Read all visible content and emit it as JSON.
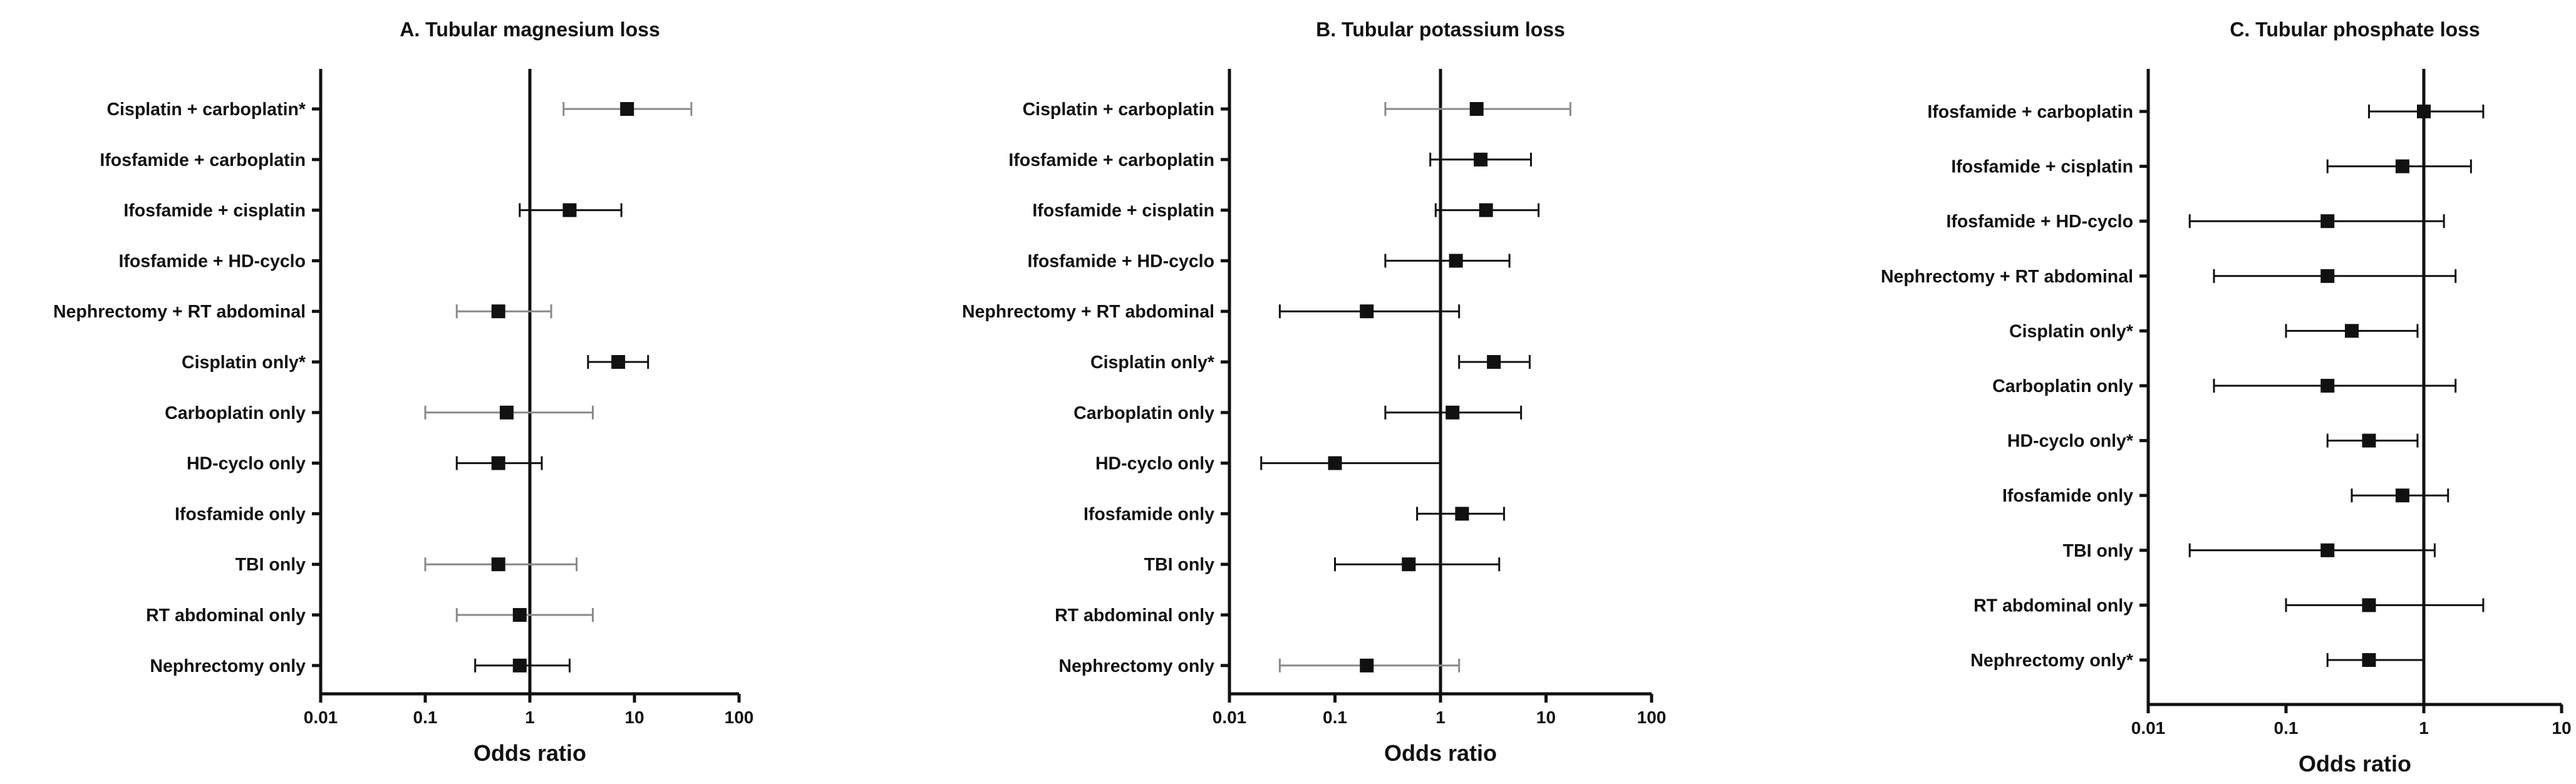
{
  "chart_data": [
    {
      "type": "forest",
      "title": "A. Tubular magnesium loss",
      "xlabel": "Odds ratio",
      "xscale": "log",
      "xlim": [
        0.01,
        100
      ],
      "xticks": [
        "0.01",
        "0.1",
        "1",
        "10",
        "100"
      ],
      "reference_line": 1,
      "rows": [
        {
          "label": "Cisplatin + carboplatin*",
          "or": 8.5,
          "lo": 2.1,
          "hi": 35,
          "gray": true
        },
        {
          "label": "Ifosfamide + carboplatin",
          "or": null,
          "lo": null,
          "hi": null,
          "gray": false
        },
        {
          "label": "Ifosfamide + cisplatin",
          "or": 2.4,
          "lo": 0.8,
          "hi": 7.5,
          "gray": false
        },
        {
          "label": "Ifosfamide + HD-cyclo",
          "or": null,
          "lo": null,
          "hi": null,
          "gray": false
        },
        {
          "label": "Nephrectomy + RT abdominal",
          "or": 0.5,
          "lo": 0.2,
          "hi": 1.6,
          "gray": true
        },
        {
          "label": "Cisplatin only*",
          "or": 7,
          "lo": 3.6,
          "hi": 13.5,
          "gray": false
        },
        {
          "label": "Carboplatin only",
          "or": 0.6,
          "lo": 0.1,
          "hi": 4,
          "gray": true
        },
        {
          "label": "HD-cyclo only",
          "or": 0.5,
          "lo": 0.2,
          "hi": 1.3,
          "gray": false
        },
        {
          "label": "Ifosfamide only",
          "or": null,
          "lo": null,
          "hi": null,
          "gray": false
        },
        {
          "label": "TBI only",
          "or": 0.5,
          "lo": 0.1,
          "hi": 2.8,
          "gray": true
        },
        {
          "label": "RT abdominal only",
          "or": 0.8,
          "lo": 0.2,
          "hi": 4,
          "gray": true
        },
        {
          "label": "Nephrectomy only",
          "or": 0.8,
          "lo": 0.3,
          "hi": 2.4,
          "gray": false
        }
      ]
    },
    {
      "type": "forest",
      "title": "B. Tubular potassium loss",
      "xlabel": "Odds ratio",
      "xscale": "log",
      "xlim": [
        0.01,
        100
      ],
      "xticks": [
        "0.01",
        "0.1",
        "1",
        "10",
        "100"
      ],
      "reference_line": 1,
      "rows": [
        {
          "label": "Cisplatin + carboplatin",
          "or": 2.2,
          "lo": 0.3,
          "hi": 17,
          "gray": true
        },
        {
          "label": "Ifosfamide + carboplatin",
          "or": 2.4,
          "lo": 0.8,
          "hi": 7.2,
          "gray": false
        },
        {
          "label": "Ifosfamide + cisplatin",
          "or": 2.7,
          "lo": 0.9,
          "hi": 8.5,
          "gray": false
        },
        {
          "label": "Ifosfamide + HD-cyclo",
          "or": 1.4,
          "lo": 0.3,
          "hi": 4.5,
          "gray": false
        },
        {
          "label": "Nephrectomy + RT abdominal",
          "or": 0.2,
          "lo": 0.03,
          "hi": 1.5,
          "gray": false
        },
        {
          "label": "Cisplatin only*",
          "or": 3.2,
          "lo": 1.5,
          "hi": 7,
          "gray": false
        },
        {
          "label": "Carboplatin only",
          "or": 1.3,
          "lo": 0.3,
          "hi": 5.8,
          "gray": false
        },
        {
          "label": "HD-cyclo only",
          "or": 0.1,
          "lo": 0.02,
          "hi": 1,
          "gray": false
        },
        {
          "label": "Ifosfamide only",
          "or": 1.6,
          "lo": 0.6,
          "hi": 4,
          "gray": false
        },
        {
          "label": "TBI only",
          "or": 0.5,
          "lo": 0.1,
          "hi": 3.6,
          "gray": false
        },
        {
          "label": "RT abdominal only",
          "or": null,
          "lo": null,
          "hi": null,
          "gray": false
        },
        {
          "label": "Nephrectomy only",
          "or": 0.2,
          "lo": 0.03,
          "hi": 1.5,
          "gray": true
        }
      ]
    },
    {
      "type": "forest",
      "title": "C. Tubular phosphate loss",
      "xlabel": "Odds ratio",
      "xscale": "log",
      "xlim": [
        0.01,
        10
      ],
      "xticks": [
        "0.01",
        "0.1",
        "1",
        "10"
      ],
      "reference_line": 1,
      "rows": [
        {
          "label": "Ifosfamide + carboplatin",
          "or": 1,
          "lo": 0.4,
          "hi": 2.7,
          "gray": false
        },
        {
          "label": "Ifosfamide + cisplatin",
          "or": 0.7,
          "lo": 0.2,
          "hi": 2.2,
          "gray": false
        },
        {
          "label": "Ifosfamide + HD-cyclo",
          "or": 0.2,
          "lo": 0.02,
          "hi": 1.4,
          "gray": false
        },
        {
          "label": "Nephrectomy + RT abdominal",
          "or": 0.2,
          "lo": 0.03,
          "hi": 1.7,
          "gray": false
        },
        {
          "label": "Cisplatin only*",
          "or": 0.3,
          "lo": 0.1,
          "hi": 0.9,
          "gray": false
        },
        {
          "label": "Carboplatin only",
          "or": 0.2,
          "lo": 0.03,
          "hi": 1.7,
          "gray": false
        },
        {
          "label": "HD-cyclo only*",
          "or": 0.4,
          "lo": 0.2,
          "hi": 0.9,
          "gray": false
        },
        {
          "label": "Ifosfamide only",
          "or": 0.7,
          "lo": 0.3,
          "hi": 1.5,
          "gray": false
        },
        {
          "label": "TBI only",
          "or": 0.2,
          "lo": 0.02,
          "hi": 1.2,
          "gray": false
        },
        {
          "label": "RT abdominal only",
          "or": 0.4,
          "lo": 0.1,
          "hi": 2.7,
          "gray": false
        },
        {
          "label": "Nephrectomy only*",
          "or": 0.4,
          "lo": 0.2,
          "hi": 1,
          "gray": false
        }
      ]
    }
  ],
  "colors": {
    "axis": "#111111",
    "marker": "#111111",
    "ci_dark": "#111111",
    "ci_gray": "#8a8a8a"
  }
}
